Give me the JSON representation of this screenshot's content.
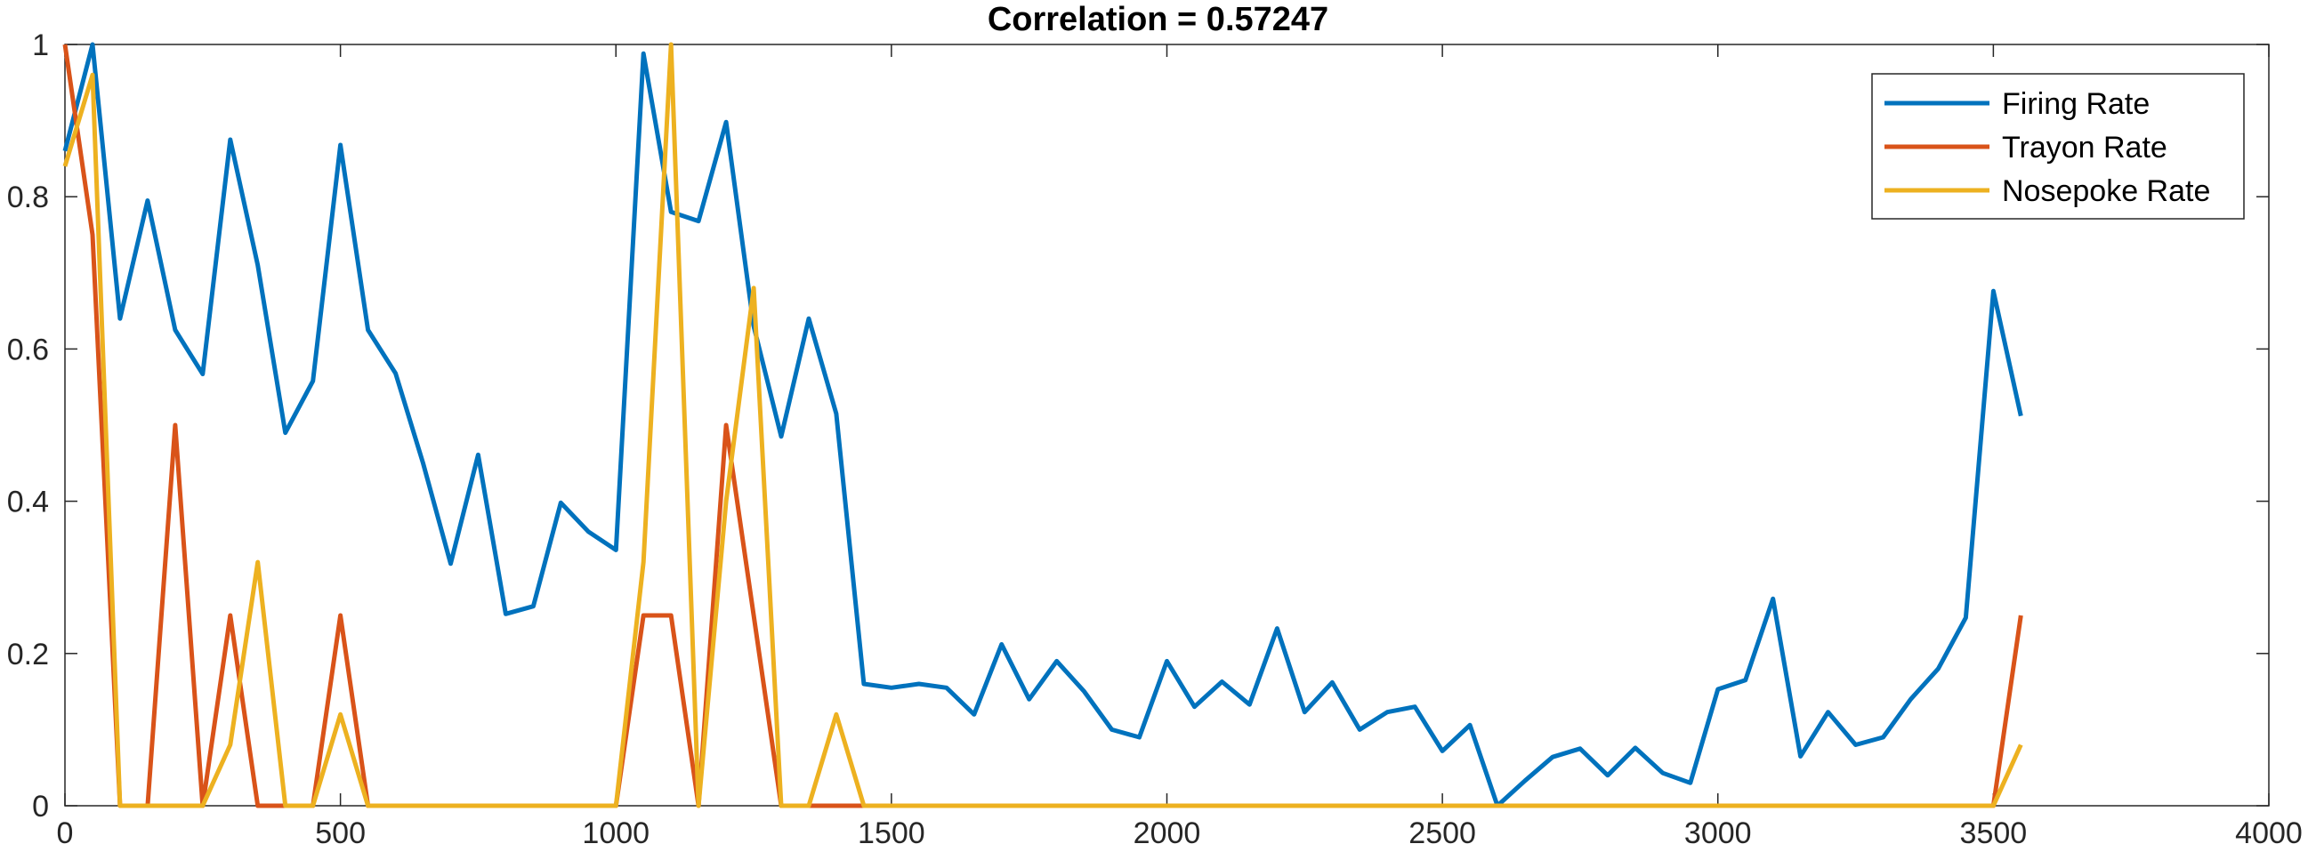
{
  "chart_data": {
    "type": "line",
    "title": "Correlation = 0.57247",
    "xlabel": "",
    "ylabel": "",
    "xlim": [
      0,
      4000
    ],
    "ylim": [
      0,
      1
    ],
    "xticks": [
      0,
      500,
      1000,
      1500,
      2000,
      2500,
      3000,
      3500,
      4000
    ],
    "xtick_labels": [
      "0",
      "500",
      "1000",
      "1500",
      "2000",
      "2500",
      "3000",
      "3500",
      "4000"
    ],
    "yticks": [
      0,
      0.2,
      0.4,
      0.6,
      0.8,
      1
    ],
    "ytick_labels": [
      "0",
      "0.2",
      "0.4",
      "0.6",
      "0.8",
      "1"
    ],
    "grid": false,
    "legend_position": "top-right",
    "x": [
      0,
      50,
      100,
      150,
      200,
      250,
      300,
      350,
      400,
      450,
      500,
      550,
      600,
      650,
      700,
      750,
      800,
      850,
      900,
      950,
      1000,
      1050,
      1100,
      1150,
      1200,
      1250,
      1300,
      1350,
      1400,
      1450,
      1500,
      1550,
      1600,
      1650,
      1700,
      1750,
      1800,
      1850,
      1900,
      1950,
      2000,
      2050,
      2100,
      2150,
      2200,
      2250,
      2300,
      2350,
      2400,
      2450,
      2500,
      2550,
      2600,
      2650,
      2700,
      2750,
      2800,
      2850,
      2900,
      2950,
      3000,
      3050,
      3100,
      3150,
      3200,
      3250,
      3300,
      3350,
      3400,
      3450,
      3500,
      3550
    ],
    "series": [
      {
        "name": "Firing Rate",
        "color": "#0072BD",
        "values": [
          0.86,
          1.0,
          0.64,
          0.795,
          0.625,
          0.567,
          0.875,
          0.71,
          0.49,
          0.558,
          0.868,
          0.625,
          0.568,
          0.45,
          0.318,
          0.461,
          0.252,
          0.262,
          0.398,
          0.36,
          0.336,
          0.988,
          0.78,
          0.768,
          0.898,
          0.63,
          0.485,
          0.64,
          0.515,
          0.16,
          0.155,
          0.16,
          0.155,
          0.12,
          0.212,
          0.14,
          0.19,
          0.15,
          0.1,
          0.09,
          0.19,
          0.13,
          0.163,
          0.133,
          0.233,
          0.123,
          0.162,
          0.1,
          0.123,
          0.13,
          0.072,
          0.106,
          0.0,
          0.033,
          0.064,
          0.075,
          0.04,
          0.076,
          0.043,
          0.03,
          0.153,
          0.165,
          0.272,
          0.065,
          0.123,
          0.08,
          0.09,
          0.14,
          0.18,
          0.247,
          0.676,
          0.512
        ]
      },
      {
        "name": "Trayon Rate",
        "color": "#D95319",
        "values": [
          1.0,
          0.75,
          0.0,
          0.0,
          0.5,
          0.0,
          0.25,
          0.0,
          0.0,
          0.0,
          0.25,
          0.0,
          0.0,
          0.0,
          0.0,
          0.0,
          0.0,
          0.0,
          0.0,
          0.0,
          0.0,
          0.25,
          0.25,
          0.0,
          0.5,
          0.25,
          0.0,
          0.0,
          0.0,
          0.0,
          0.0,
          0.0,
          0.0,
          0.0,
          0.0,
          0.0,
          0.0,
          0.0,
          0.0,
          0.0,
          0.0,
          0.0,
          0.0,
          0.0,
          0.0,
          0.0,
          0.0,
          0.0,
          0.0,
          0.0,
          0.0,
          0.0,
          0.0,
          0.0,
          0.0,
          0.0,
          0.0,
          0.0,
          0.0,
          0.0,
          0.0,
          0.0,
          0.0,
          0.0,
          0.0,
          0.0,
          0.0,
          0.0,
          0.0,
          0.0,
          0.0,
          0.25
        ]
      },
      {
        "name": "Nosepoke Rate",
        "color": "#EDB120",
        "values": [
          0.84,
          0.96,
          0.0,
          0.0,
          0.0,
          0.0,
          0.08,
          0.32,
          0.0,
          0.0,
          0.12,
          0.0,
          0.0,
          0.0,
          0.0,
          0.0,
          0.0,
          0.0,
          0.0,
          0.0,
          0.0,
          0.32,
          1.0,
          0.0,
          0.4,
          0.68,
          0.0,
          0.0,
          0.12,
          0.0,
          0.0,
          0.0,
          0.0,
          0.0,
          0.0,
          0.0,
          0.0,
          0.0,
          0.0,
          0.0,
          0.0,
          0.0,
          0.0,
          0.0,
          0.0,
          0.0,
          0.0,
          0.0,
          0.0,
          0.0,
          0.0,
          0.0,
          0.0,
          0.0,
          0.0,
          0.0,
          0.0,
          0.0,
          0.0,
          0.0,
          0.0,
          0.0,
          0.0,
          0.0,
          0.0,
          0.0,
          0.0,
          0.0,
          0.0,
          0.0,
          0.0,
          0.08
        ]
      }
    ]
  }
}
